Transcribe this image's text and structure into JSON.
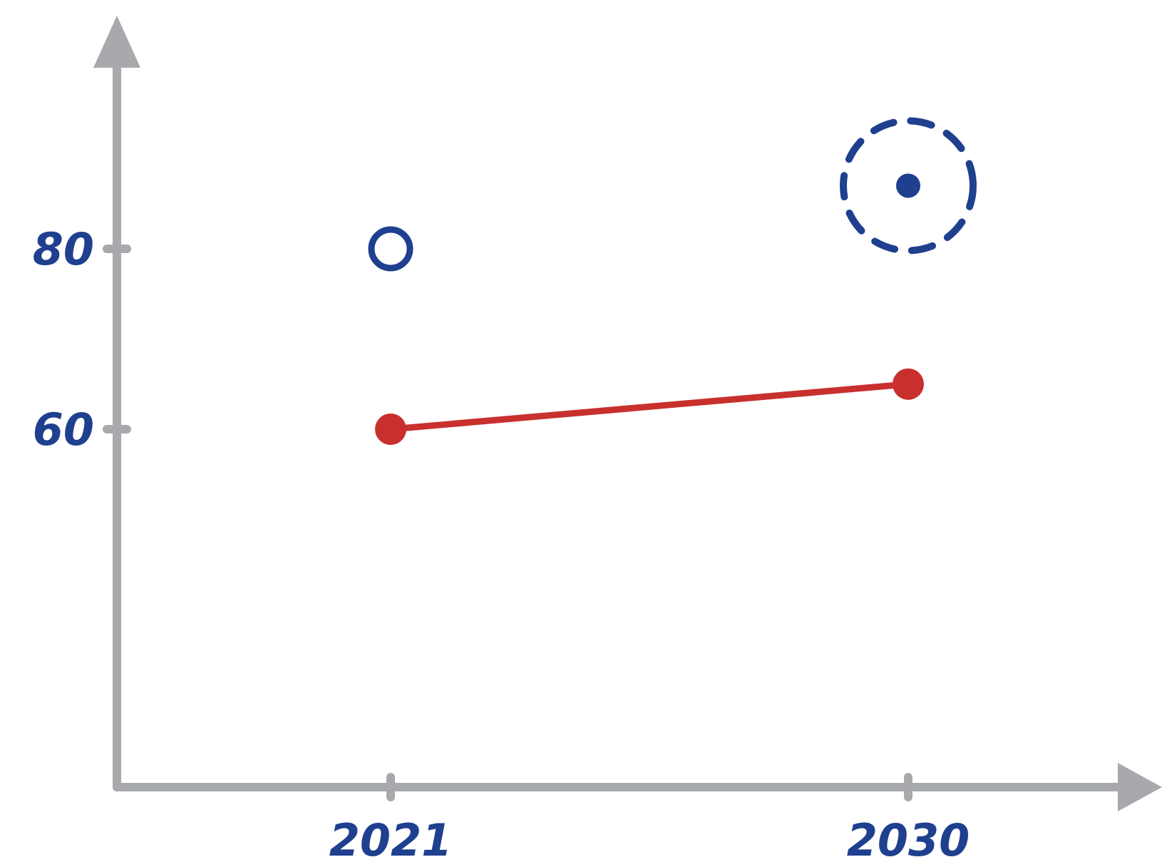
{
  "chart_data": {
    "type": "line",
    "title": "",
    "xlabel": "",
    "ylabel": "",
    "x_ticks": [
      "2021",
      "2030"
    ],
    "y_ticks": [
      {
        "value": 60,
        "label": "60"
      },
      {
        "value": 80,
        "label": "80"
      }
    ],
    "x_range": [
      2018,
      2033
    ],
    "y_range": [
      20,
      105
    ],
    "grid": false,
    "legend": "none",
    "series": [
      {
        "style": "solid-line-with-filled-markers",
        "color": "#c8302e",
        "points": [
          {
            "x": 2021,
            "y": 60
          },
          {
            "x": 2030,
            "y": 65
          }
        ]
      }
    ],
    "markers": [
      {
        "kind": "open-circle",
        "color": "#1f3f8f",
        "x": 2021,
        "y": 80
      },
      {
        "kind": "dot-in-dashed-circle",
        "color": "#1f3f8f",
        "x": 2030,
        "y": 87
      }
    ],
    "colors": {
      "axis": "#a7a9ac",
      "labels": "#1f3f8f",
      "line": "#c8302e",
      "markers": "#1f3f8f"
    }
  }
}
